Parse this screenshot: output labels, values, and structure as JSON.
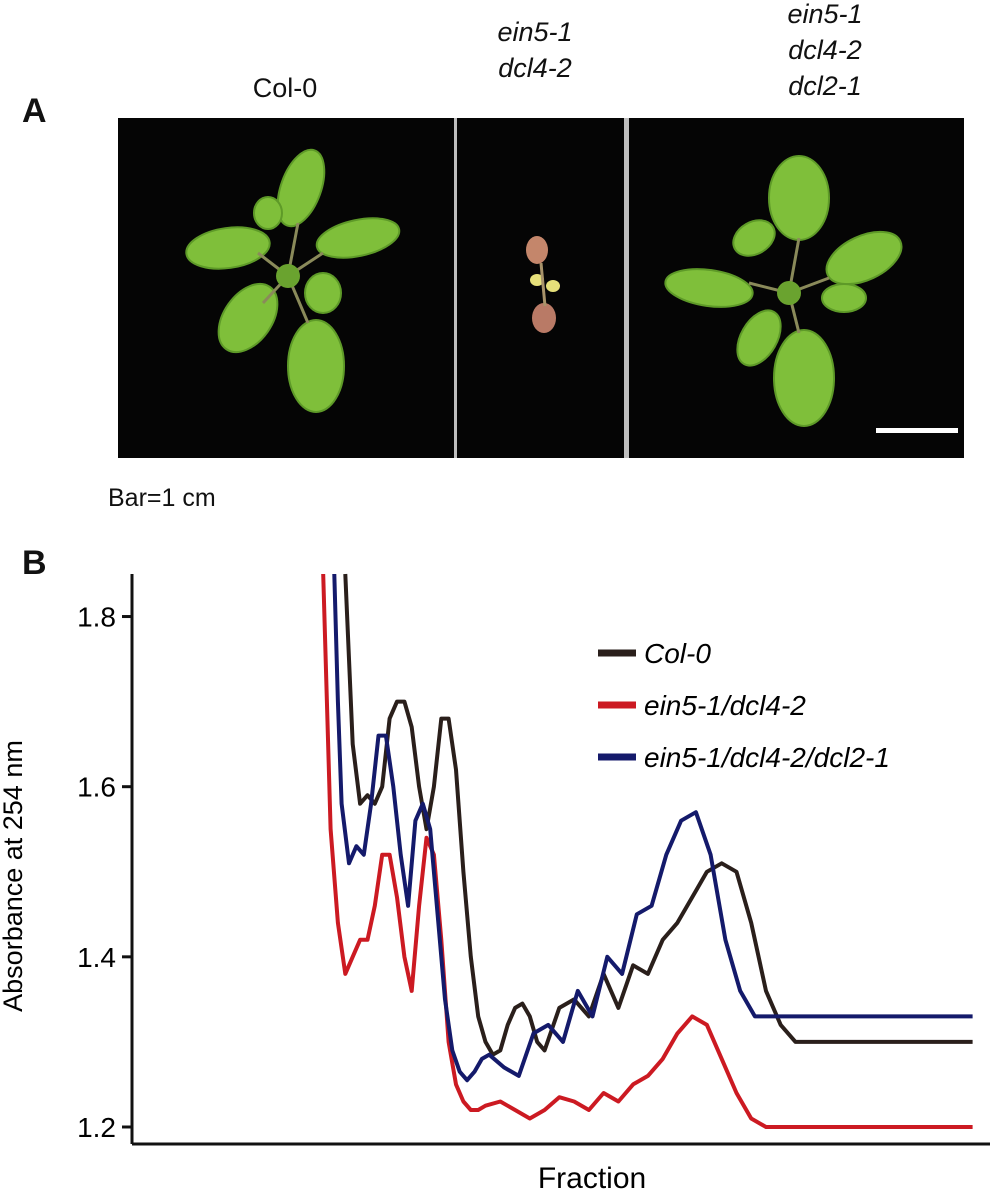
{
  "panel_a": {
    "letter": "A",
    "genotypes": [
      {
        "lines": [
          "Col-0"
        ]
      },
      {
        "lines": [
          "ein5-1",
          "dcl4-2"
        ]
      },
      {
        "lines": [
          "ein5-1",
          "dcl4-2",
          "dcl2-1"
        ]
      }
    ],
    "scale_caption": "Bar=1 cm"
  },
  "panel_b": {
    "letter": "B"
  },
  "chart_data": {
    "type": "line",
    "xlabel": "Fraction",
    "ylabel": "Absorbance at 254 nm",
    "ylim": [
      1.18,
      1.85
    ],
    "yticks": [
      "1.8",
      "1.6",
      "1.4",
      "1.2"
    ],
    "ytick_values": [
      1.8,
      1.6,
      1.4,
      1.2
    ],
    "xlim": [
      0,
      1
    ],
    "legend_position": "top-right",
    "series": [
      {
        "name": "Col-0",
        "color": "#2a1f1b",
        "x": [
          0.14,
          0.145,
          0.15,
          0.16,
          0.17,
          0.18,
          0.19,
          0.2,
          0.21,
          0.22,
          0.23,
          0.24,
          0.25,
          0.26,
          0.27,
          0.28,
          0.29,
          0.3,
          0.31,
          0.32,
          0.33,
          0.34,
          0.35,
          0.36,
          0.37,
          0.38,
          0.39,
          0.4,
          0.41,
          0.43,
          0.45,
          0.47,
          0.49,
          0.51,
          0.53,
          0.55,
          0.57,
          0.59,
          0.61,
          0.63,
          0.65,
          0.67,
          0.69,
          0.71,
          0.73,
          0.75,
          0.77,
          0.79,
          0.81,
          0.83,
          0.85,
          0.87,
          0.88,
          0.89,
          0.9,
          0.91,
          0.92,
          0.93,
          0.94,
          0.95,
          0.96,
          0.975,
          0.99
        ],
        "y": [
          1.85,
          1.75,
          1.65,
          1.58,
          1.59,
          1.58,
          1.6,
          1.68,
          1.7,
          1.7,
          1.67,
          1.6,
          1.55,
          1.6,
          1.68,
          1.68,
          1.62,
          1.5,
          1.4,
          1.33,
          1.3,
          1.285,
          1.29,
          1.32,
          1.34,
          1.345,
          1.33,
          1.3,
          1.29,
          1.34,
          1.35,
          1.33,
          1.38,
          1.34,
          1.39,
          1.38,
          1.42,
          1.44,
          1.47,
          1.5,
          1.51,
          1.5,
          1.44,
          1.36,
          1.32,
          1.3,
          1.3,
          1.3,
          1.3,
          1.3,
          1.3,
          1.3,
          1.3,
          1.3,
          1.3,
          1.3,
          1.3,
          1.3,
          1.3,
          1.3,
          1.3,
          1.3,
          1.3
        ]
      },
      {
        "name": "ein5-1/dcl4-2",
        "color": "#cc1a22",
        "x": [
          0.11,
          0.115,
          0.12,
          0.13,
          0.14,
          0.15,
          0.16,
          0.17,
          0.18,
          0.19,
          0.2,
          0.21,
          0.22,
          0.23,
          0.24,
          0.25,
          0.26,
          0.27,
          0.28,
          0.29,
          0.3,
          0.31,
          0.32,
          0.33,
          0.35,
          0.37,
          0.39,
          0.41,
          0.43,
          0.45,
          0.47,
          0.49,
          0.51,
          0.53,
          0.55,
          0.57,
          0.59,
          0.61,
          0.63,
          0.65,
          0.67,
          0.69,
          0.71,
          0.73,
          0.75,
          0.77,
          0.79,
          0.81,
          0.83,
          0.85,
          0.87,
          0.89,
          0.91,
          0.93,
          0.95,
          0.97,
          0.99
        ],
        "y": [
          1.85,
          1.7,
          1.55,
          1.44,
          1.38,
          1.4,
          1.42,
          1.42,
          1.46,
          1.52,
          1.52,
          1.47,
          1.4,
          1.36,
          1.46,
          1.54,
          1.52,
          1.42,
          1.3,
          1.25,
          1.23,
          1.22,
          1.22,
          1.225,
          1.23,
          1.22,
          1.21,
          1.22,
          1.235,
          1.23,
          1.22,
          1.24,
          1.23,
          1.25,
          1.26,
          1.28,
          1.31,
          1.33,
          1.32,
          1.28,
          1.24,
          1.21,
          1.2,
          1.2,
          1.2,
          1.2,
          1.2,
          1.2,
          1.2,
          1.2,
          1.2,
          1.2,
          1.2,
          1.2,
          1.2,
          1.2,
          1.2
        ]
      },
      {
        "name": "ein5-1/dcl4-2/dcl2-1",
        "color": "#141a6b",
        "x": [
          0.125,
          0.13,
          0.135,
          0.145,
          0.155,
          0.165,
          0.175,
          0.185,
          0.195,
          0.205,
          0.215,
          0.225,
          0.235,
          0.245,
          0.255,
          0.265,
          0.275,
          0.285,
          0.295,
          0.305,
          0.315,
          0.325,
          0.335,
          0.355,
          0.375,
          0.395,
          0.415,
          0.435,
          0.455,
          0.475,
          0.495,
          0.515,
          0.535,
          0.555,
          0.575,
          0.595,
          0.615,
          0.635,
          0.655,
          0.675,
          0.695,
          0.715,
          0.735,
          0.755,
          0.775,
          0.795,
          0.815,
          0.835,
          0.855,
          0.875,
          0.895,
          0.915,
          0.935,
          0.955,
          0.975,
          0.99
        ],
        "y": [
          1.85,
          1.7,
          1.58,
          1.51,
          1.53,
          1.52,
          1.58,
          1.66,
          1.66,
          1.6,
          1.52,
          1.46,
          1.56,
          1.58,
          1.55,
          1.45,
          1.35,
          1.29,
          1.265,
          1.255,
          1.265,
          1.28,
          1.285,
          1.27,
          1.26,
          1.31,
          1.32,
          1.3,
          1.36,
          1.33,
          1.4,
          1.38,
          1.45,
          1.46,
          1.52,
          1.56,
          1.57,
          1.52,
          1.42,
          1.36,
          1.33,
          1.33,
          1.33,
          1.33,
          1.33,
          1.33,
          1.33,
          1.33,
          1.33,
          1.33,
          1.33,
          1.33,
          1.33,
          1.33,
          1.33,
          1.33
        ]
      }
    ]
  }
}
